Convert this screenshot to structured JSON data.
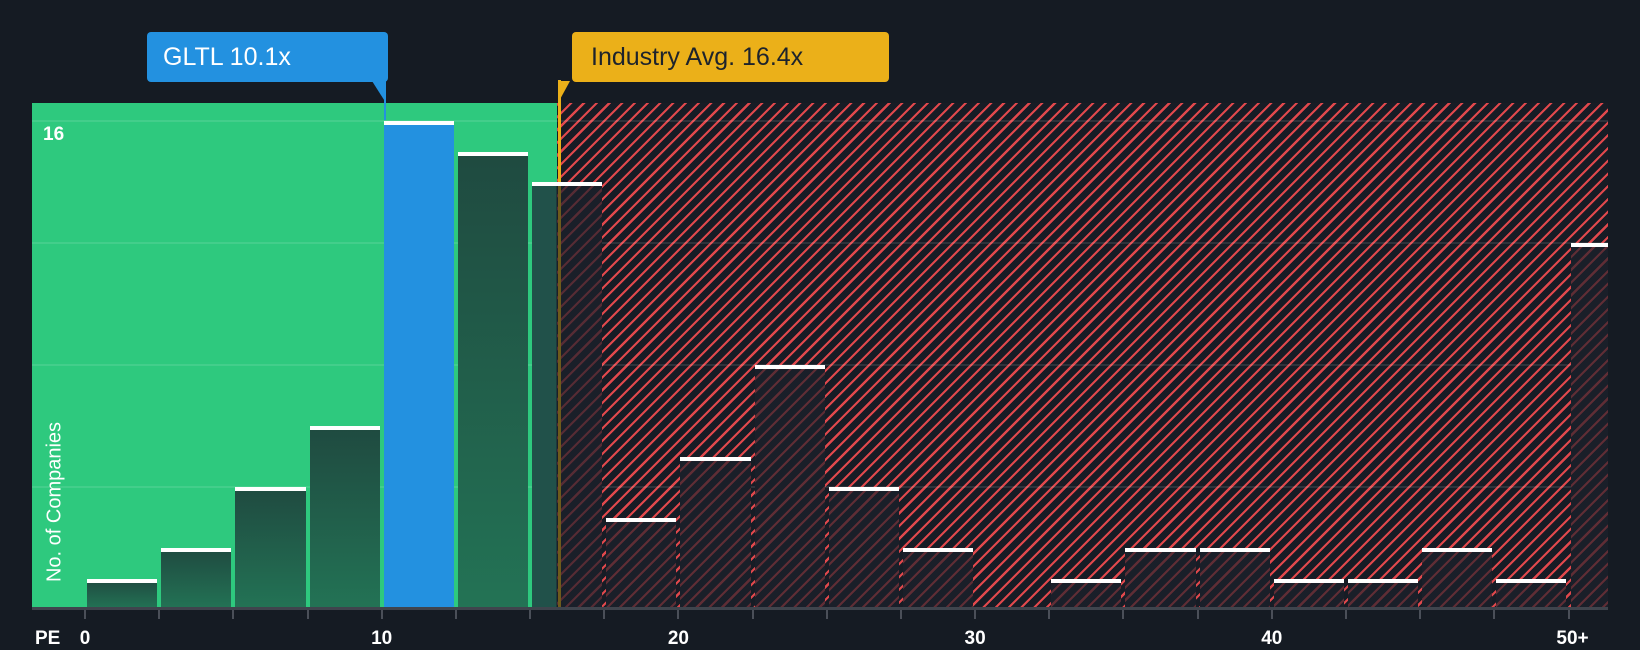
{
  "callouts": {
    "company": {
      "label": "GLTL 10.1x",
      "ticker": "GLTL",
      "value": 10.1
    },
    "industry": {
      "label": "Industry Avg. 16.4x",
      "value": 16.4
    }
  },
  "axes": {
    "y_title": "No. of Companies",
    "y_top_label": "16",
    "x_title": "PE",
    "x_tick_labels": [
      {
        "value": 0,
        "label": "0"
      },
      {
        "value": 10,
        "label": "10"
      },
      {
        "value": 20,
        "label": "20"
      },
      {
        "value": 30,
        "label": "30"
      },
      {
        "value": 40,
        "label": "40"
      },
      {
        "value": 50,
        "label": "50+"
      }
    ]
  },
  "colors": {
    "background": "#151b23",
    "undervalued_zone": "#2ec97e",
    "overvalued_hatch": "#e0484c",
    "company": "#2391e0",
    "industry": "#ebb019",
    "bar_cap": "#ffffff"
  },
  "chart_data": {
    "type": "bar",
    "title": "",
    "xlabel": "PE",
    "ylabel": "No. of Companies",
    "bin_width": 2.5,
    "categories": [
      "0-2.5",
      "2.5-5",
      "5-7.5",
      "7.5-10",
      "10-12.5",
      "12.5-15",
      "15-17.5",
      "17.5-20",
      "20-22.5",
      "22.5-25",
      "25-27.5",
      "27.5-30",
      "30-32.5",
      "32.5-35",
      "35-37.5",
      "37.5-40",
      "40-42.5",
      "42.5-45",
      "45-47.5",
      "47.5-50",
      "50+"
    ],
    "bin_starts": [
      0,
      2.5,
      5,
      7.5,
      10,
      12.5,
      15,
      17.5,
      20,
      22.5,
      25,
      27.5,
      30,
      32.5,
      35,
      37.5,
      40,
      42.5,
      45,
      47.5,
      50
    ],
    "values": [
      1,
      2,
      4,
      6,
      16,
      15,
      14,
      3,
      5,
      8,
      4,
      2,
      0,
      1,
      2,
      2,
      1,
      1,
      2,
      1,
      12
    ],
    "highlight_bin": 4,
    "company_pe": 10.1,
    "industry_avg_pe": 16.4,
    "green_zone_end_pe": 15.9,
    "ylim": [
      0,
      16
    ],
    "y_gridlines": [
      4,
      8,
      12,
      16
    ],
    "xlim": [
      -1.8,
      51.3
    ],
    "x_ticks": [
      0,
      2.5,
      5,
      7.5,
      10,
      12.5,
      15,
      17.5,
      20,
      22.5,
      25,
      27.5,
      30,
      32.5,
      35,
      37.5,
      40,
      42.5,
      45,
      47.5,
      50
    ],
    "grid": true,
    "legend": null
  }
}
